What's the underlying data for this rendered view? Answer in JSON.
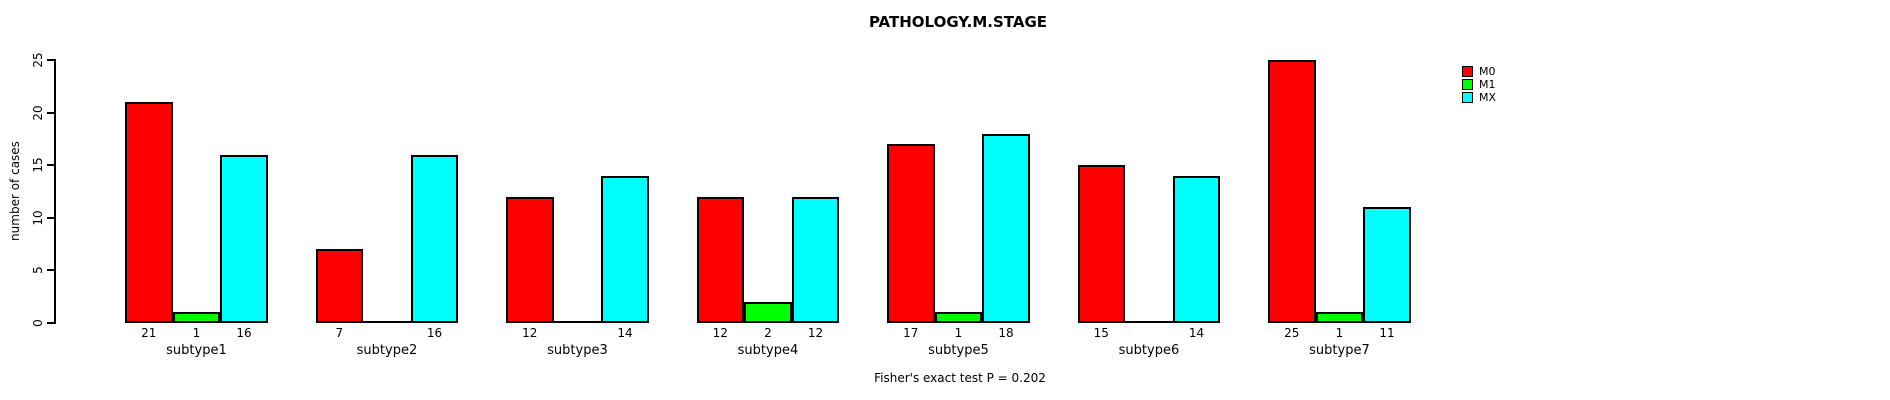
{
  "chart_data": {
    "type": "bar",
    "title": "PATHOLOGY.M.STAGE",
    "ylabel": "number of cases",
    "xlabel": "",
    "footnote": "Fisher's exact test P = 0.202",
    "categories": [
      "subtype1",
      "subtype2",
      "subtype3",
      "subtype4",
      "subtype5",
      "subtype6",
      "subtype7"
    ],
    "series": [
      {
        "name": "M0",
        "color": "#ff0000",
        "values": [
          21,
          7,
          12,
          12,
          17,
          15,
          25
        ]
      },
      {
        "name": "M1",
        "color": "#00ff00",
        "values": [
          1,
          0,
          0,
          2,
          1,
          0,
          1
        ]
      },
      {
        "name": "MX",
        "color": "#00ffff",
        "values": [
          16,
          16,
          14,
          12,
          18,
          14,
          11
        ]
      }
    ],
    "yticks": [
      0,
      5,
      10,
      15,
      20,
      25
    ],
    "ylim": [
      0,
      25
    ],
    "legend": {
      "position": "top-right",
      "entries": [
        "M0",
        "M1",
        "MX"
      ]
    },
    "grid": false,
    "bar_border_color": "#000000",
    "value_labels_below_bars": true,
    "hide_zero_value_labels": true
  },
  "colors": {
    "background": "#ffffff",
    "axis": "#000000",
    "text": "#000000"
  }
}
